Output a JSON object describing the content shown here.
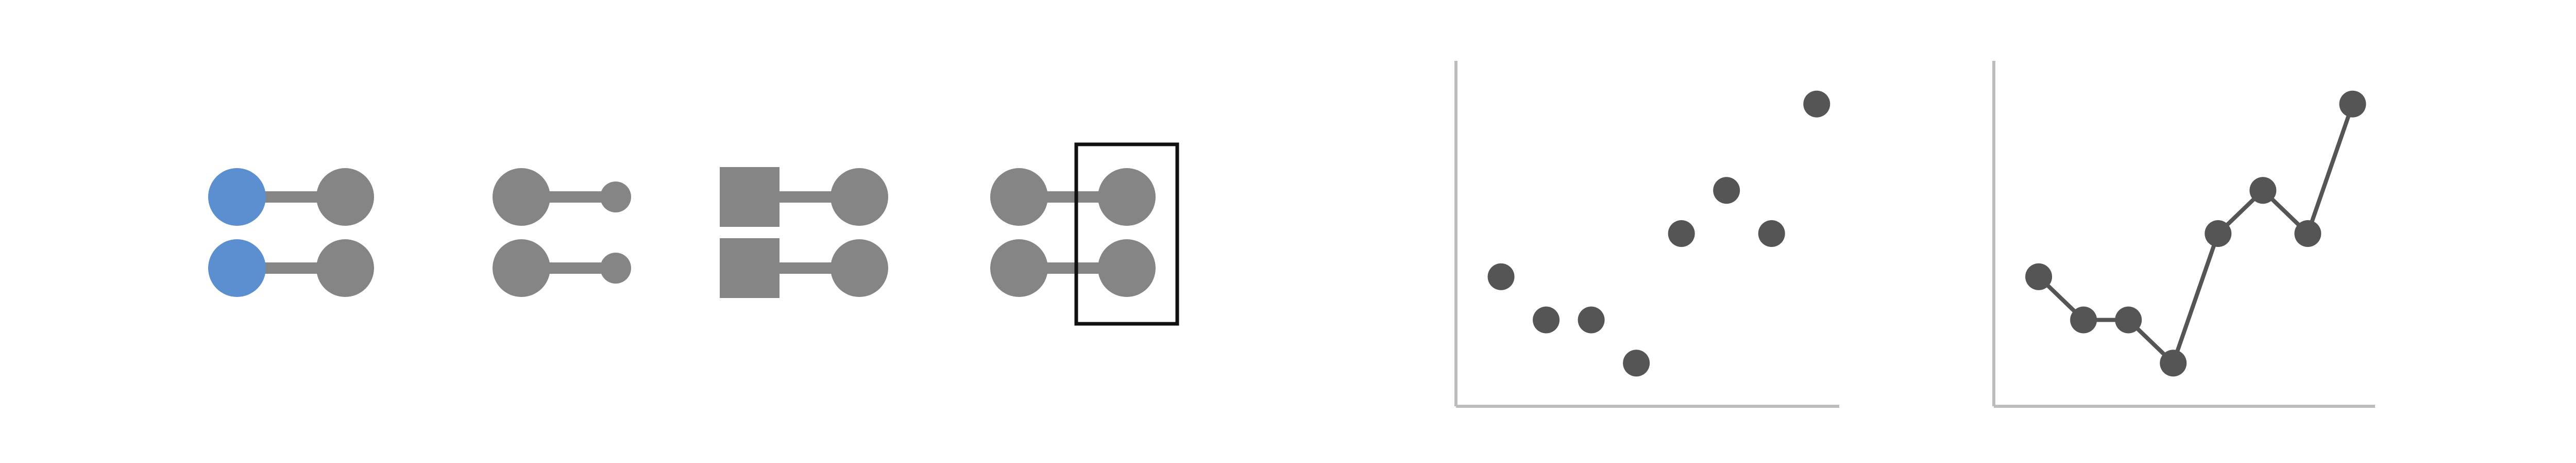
{
  "colors": {
    "background": "#ffffff",
    "accent_blue": "#5b8fcf",
    "glyph_gray": "#858585",
    "point_dark": "#555555",
    "axis_gray": "#bdbdbd",
    "frame_black": "#111111"
  },
  "glyph_groups": [
    {
      "name": "color-variation",
      "left_shape": "circle",
      "right_shape": "circle",
      "left_color": "accent_blue",
      "right_color": "glyph_gray",
      "rows": 2,
      "highlight": false
    },
    {
      "name": "size-variation",
      "left_shape": "circle",
      "right_shape": "small-circle",
      "left_color": "glyph_gray",
      "right_color": "glyph_gray",
      "rows": 2,
      "highlight": false
    },
    {
      "name": "shape-variation",
      "left_shape": "square",
      "right_shape": "circle",
      "left_color": "glyph_gray",
      "right_color": "glyph_gray",
      "rows": 2,
      "highlight": false
    },
    {
      "name": "enclosure",
      "left_shape": "circle",
      "right_shape": "circle",
      "left_color": "glyph_gray",
      "right_color": "glyph_gray",
      "rows": 2,
      "highlight": true
    }
  ],
  "chart_data": [
    {
      "type": "scatter",
      "x": [
        1,
        2,
        3,
        4,
        5,
        6,
        7,
        8
      ],
      "y": [
        3,
        2,
        2,
        1,
        4,
        5,
        4,
        7
      ],
      "xlim": [
        0,
        8.5
      ],
      "ylim": [
        0,
        8
      ],
      "grid": false,
      "connected": false
    },
    {
      "type": "line",
      "x": [
        1,
        2,
        3,
        4,
        5,
        6,
        7,
        8
      ],
      "y": [
        3,
        2,
        2,
        1,
        4,
        5,
        4,
        7
      ],
      "xlim": [
        0,
        8.5
      ],
      "ylim": [
        0,
        8
      ],
      "grid": false,
      "connected": true
    }
  ]
}
